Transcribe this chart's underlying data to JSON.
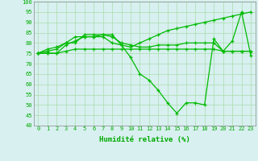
{
  "xlabel": "Humidité relative (%)",
  "x": [
    0,
    1,
    2,
    3,
    4,
    5,
    6,
    7,
    8,
    9,
    10,
    11,
    12,
    13,
    14,
    15,
    16,
    17,
    18,
    19,
    20,
    21,
    22,
    23
  ],
  "line1": [
    75,
    77,
    78,
    80,
    80,
    84,
    84,
    84,
    84,
    79,
    73,
    65,
    62,
    57,
    51,
    46,
    51,
    51,
    50,
    82,
    76,
    81,
    95,
    74
  ],
  "line2": [
    75,
    75,
    75,
    79,
    81,
    83,
    83,
    84,
    83,
    80,
    79,
    78,
    78,
    79,
    79,
    79,
    80,
    80,
    80,
    80,
    76,
    76,
    76,
    76
  ],
  "line3": [
    75,
    76,
    77,
    80,
    83,
    83,
    83,
    83,
    80,
    79,
    78,
    80,
    82,
    84,
    86,
    87,
    88,
    89,
    90,
    91,
    92,
    93,
    94,
    95
  ],
  "line4": [
    75,
    75,
    75,
    76,
    77,
    77,
    77,
    77,
    77,
    77,
    77,
    77,
    77,
    77,
    77,
    77,
    77,
    77,
    77,
    77,
    76,
    76,
    76,
    76
  ],
  "line_color": "#00bb00",
  "bg_color": "#d8f0f0",
  "grid_color": "#aaddaa",
  "ylim": [
    40,
    100
  ],
  "xlim": [
    -0.5,
    23.5
  ],
  "yticks": [
    40,
    45,
    50,
    55,
    60,
    65,
    70,
    75,
    80,
    85,
    90,
    95,
    100
  ],
  "xticks": [
    0,
    1,
    2,
    3,
    4,
    5,
    6,
    7,
    8,
    9,
    10,
    11,
    12,
    13,
    14,
    15,
    16,
    17,
    18,
    19,
    20,
    21,
    22,
    23
  ]
}
